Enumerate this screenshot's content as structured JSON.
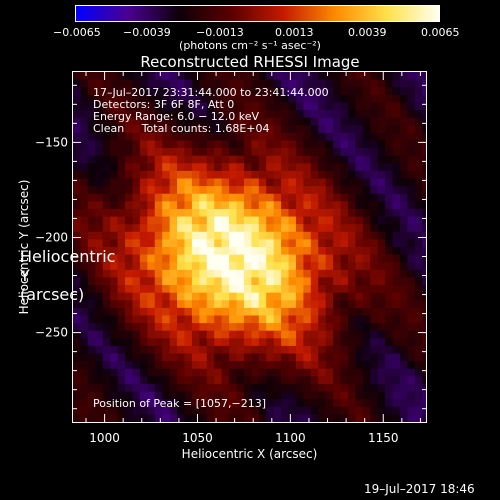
{
  "colorbar": {
    "ticks": [
      "−0.0065",
      "−0.0039",
      "−0.0013",
      "0.0013",
      "0.0039",
      "0.0065"
    ],
    "unit_label": "(photons cm⁻² s⁻¹ asec⁻²)",
    "colors": [
      "#0000ff",
      "#4b0091",
      "#0d0008",
      "#5a0000",
      "#c41a00",
      "#ff8a00",
      "#ffe14a",
      "#fffff2"
    ]
  },
  "chart_data": {
    "type": "heatmap",
    "title": "Reconstructed RHESSI Image",
    "xlabel": "Heliocentric X (arcsec)",
    "ylabel": "Heliocentric Y (arcsec)",
    "xlim": [
      983,
      1173
    ],
    "ylim": [
      -297,
      -113
    ],
    "x_ticks": [
      1000,
      1050,
      1100,
      1150
    ],
    "y_ticks": [
      -150,
      -200,
      -250
    ],
    "x_tick_labels": [
      "1000",
      "1050",
      "1100",
      "1150"
    ],
    "y_tick_labels": [
      "−150",
      "−200",
      "−250"
    ],
    "value_range": [
      -0.0065,
      0.0065
    ],
    "peak": [
      1057,
      -213
    ],
    "source": {
      "center_x": 1068,
      "center_y": -210,
      "sigma_x": 40,
      "sigma_y": 32,
      "angle_deg": -28
    },
    "info_lines": [
      "17–Jul–2017 23:31:44.000 to 23:41:44.000",
      "Detectors: 3F 6F 8F, Att 0",
      "Energy Range: 6.0 − 12.0 keV",
      "Clean     Total counts: 1.68E+04"
    ],
    "peak_label": "Position of Peak = [1057,−213]"
  },
  "footer": {
    "timestamp": "19–Jul–2017 18:46"
  }
}
